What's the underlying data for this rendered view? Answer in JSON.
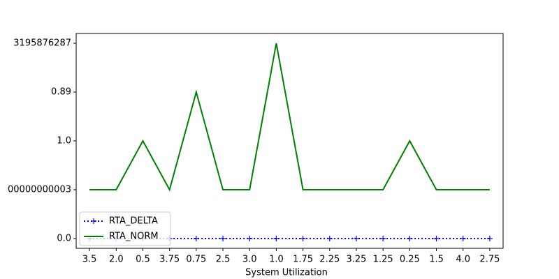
{
  "chart_data": {
    "type": "line",
    "xlabel": "System Utilization",
    "categories": [
      "3.5",
      "2.0",
      "0.5",
      "3.75",
      "0.75",
      "2.5",
      "3.0",
      "1.0",
      "1.75",
      "2.25",
      "3.25",
      "1.25",
      "0.25",
      "1.5",
      "4.0",
      "2.75"
    ],
    "ylim": [
      -0.2,
      4.2
    ],
    "yticks": [
      {
        "value": 0,
        "label": "0.0"
      },
      {
        "value": 1,
        "label": "00000000003"
      },
      {
        "value": 2,
        "label": "1.0"
      },
      {
        "value": 3,
        "label": "0.89"
      },
      {
        "value": 4,
        "label": "3195876287"
      }
    ],
    "legend": "lower left",
    "series": [
      {
        "name": "RTA_DELTA",
        "color": "#0000ff",
        "linestyle": "dotted",
        "marker": "+",
        "values": [
          0,
          0,
          0,
          0,
          0,
          0,
          0,
          0,
          0,
          0,
          0,
          0,
          0,
          0,
          0,
          0
        ]
      },
      {
        "name": "RTA_NORM",
        "color": "#008000",
        "linestyle": "solid",
        "values": [
          1,
          1,
          2,
          1,
          3,
          1,
          1,
          4,
          1,
          1,
          1,
          1,
          2,
          1,
          1,
          1
        ]
      }
    ]
  }
}
